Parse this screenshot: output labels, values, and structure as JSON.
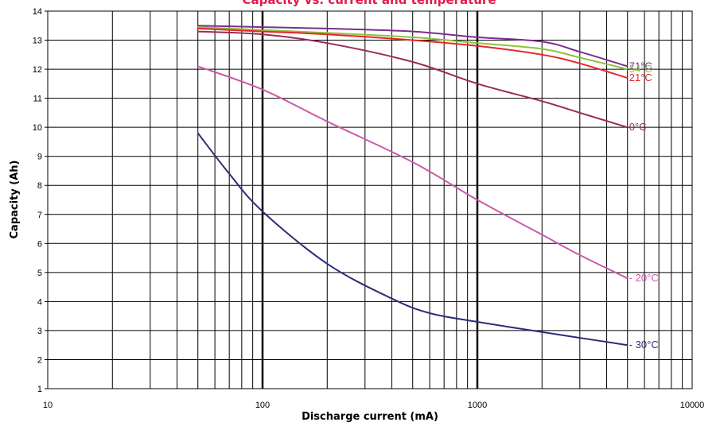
{
  "chart_data": {
    "type": "line",
    "title": "Capacity vs. current and temperature",
    "xlabel": "Discharge current (mA)",
    "ylabel": "Capacity (Ah)",
    "x_scale": "log",
    "xlim": [
      10,
      10000
    ],
    "ylim": [
      1,
      14
    ],
    "x_ticks": [
      "10",
      "100",
      "1000",
      "10000"
    ],
    "y_ticks": [
      "1",
      "2",
      "3",
      "4",
      "5",
      "6",
      "7",
      "8",
      "9",
      "10",
      "11",
      "12",
      "13",
      "14"
    ],
    "grid": true,
    "series": [
      {
        "name": "71°C",
        "color": "#7b2f8f",
        "x": [
          50,
          100,
          200,
          500,
          1000,
          2000,
          3000,
          5000
        ],
        "y": [
          13.5,
          13.45,
          13.4,
          13.3,
          13.1,
          12.95,
          12.6,
          12.1
        ]
      },
      {
        "name": "54°C",
        "color": "#8fc13d",
        "x": [
          50,
          100,
          200,
          500,
          1000,
          2000,
          3000,
          5000
        ],
        "y": [
          13.45,
          13.35,
          13.25,
          13.1,
          12.9,
          12.7,
          12.4,
          12.0
        ]
      },
      {
        "name": "21°C",
        "color": "#e8262b",
        "x": [
          50,
          100,
          200,
          500,
          1000,
          2000,
          3000,
          5000
        ],
        "y": [
          13.4,
          13.3,
          13.2,
          13.0,
          12.8,
          12.5,
          12.2,
          11.7
        ]
      },
      {
        "name": "0°C",
        "color": "#9b2c55",
        "x": [
          50,
          100,
          200,
          500,
          1000,
          2000,
          3000,
          5000
        ],
        "y": [
          13.3,
          13.2,
          12.9,
          12.25,
          11.5,
          10.9,
          10.5,
          10.0
        ]
      },
      {
        "name": "- 20°C",
        "color": "#cc5aa8",
        "x": [
          50,
          100,
          200,
          500,
          1000,
          2000,
          3000,
          5000
        ],
        "y": [
          12.1,
          11.3,
          10.2,
          8.8,
          7.5,
          6.3,
          5.6,
          4.8
        ]
      },
      {
        "name": "- 30°C",
        "color": "#2b2d7a",
        "x": [
          50,
          70,
          100,
          200,
          400,
          600,
          1000,
          2000,
          3000,
          5000
        ],
        "y": [
          9.8,
          8.4,
          7.1,
          5.3,
          4.1,
          3.6,
          3.3,
          2.95,
          2.75,
          2.5
        ]
      }
    ]
  }
}
